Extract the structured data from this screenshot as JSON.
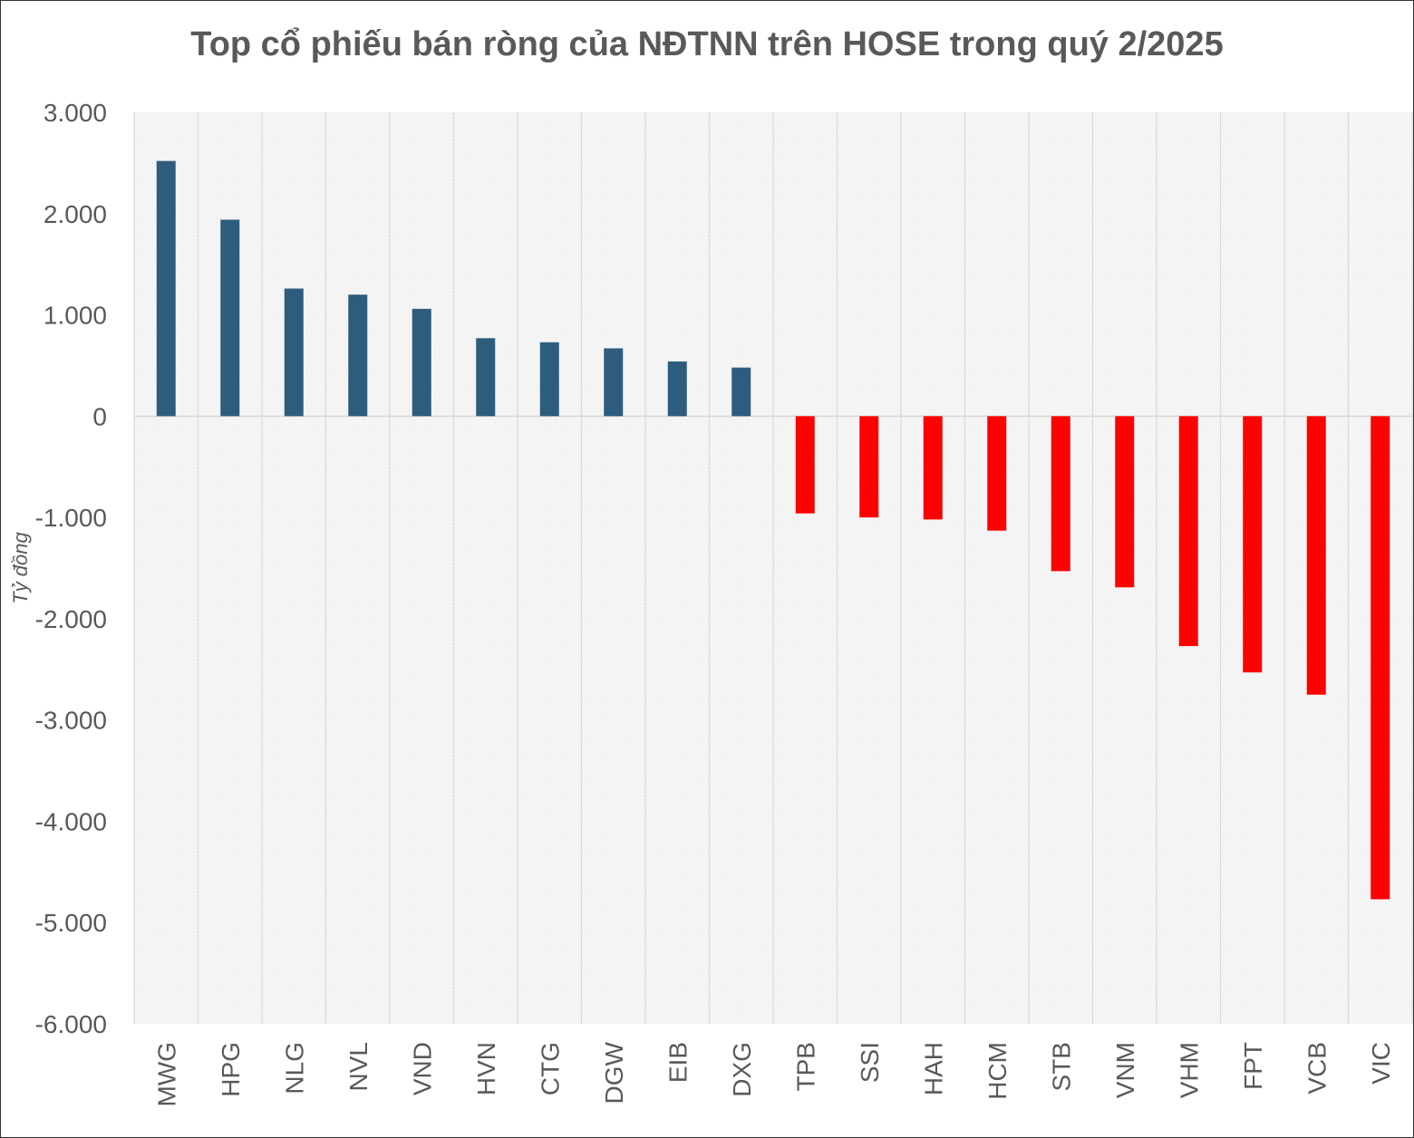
{
  "chart_data": {
    "type": "bar",
    "title": "Top cổ phiếu bán ròng của NĐTNN trên HOSE trong quý 2/2025",
    "xlabel": "",
    "ylabel": "Tỷ đồng",
    "ylim": [
      -6000,
      3000
    ],
    "ytick_values": [
      3000,
      2000,
      1000,
      0,
      -1000,
      -2000,
      -3000,
      -4000,
      -5000,
      -6000
    ],
    "ytick_labels": [
      "3.000",
      "2.000",
      "1.000",
      "0",
      "-1.000",
      "-2.000",
      "-3.000",
      "-4.000",
      "-5.000",
      "-6.000"
    ],
    "categories": [
      "MWG",
      "HPG",
      "NLG",
      "NVL",
      "VND",
      "HVN",
      "CTG",
      "DGW",
      "EIB",
      "DXG",
      "TPB",
      "SSI",
      "HAH",
      "HCM",
      "STB",
      "VNM",
      "VHM",
      "FPT",
      "VCB",
      "VIC"
    ],
    "values": [
      2520,
      1940,
      1260,
      1200,
      1060,
      770,
      730,
      670,
      540,
      480,
      -960,
      -1000,
      -1020,
      -1130,
      -1530,
      -1690,
      -2270,
      -2530,
      -2750,
      -4770
    ],
    "grid": true,
    "legend": "none",
    "colors": {
      "positive": "#2e5c7e",
      "negative": "#ff0000",
      "title": "#595959",
      "text": "#595959",
      "grid": "#d9d9d9"
    }
  }
}
